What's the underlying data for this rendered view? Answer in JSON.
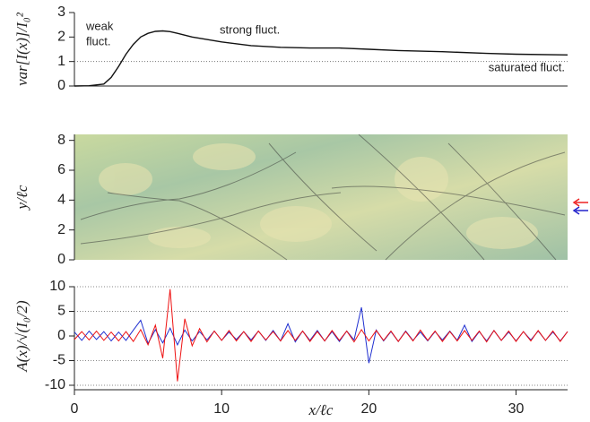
{
  "chart_data": [
    {
      "type": "line",
      "ylabel": "var[I(x)]/I₀²",
      "annotations": [
        "weak",
        "fluct.",
        "strong fluct.",
        "saturated fluct."
      ],
      "annotation_colors": [
        "#222",
        "#222",
        "#222",
        "#9b3b9b"
      ],
      "x": [
        0,
        1,
        2,
        2.5,
        3,
        3.5,
        4,
        4.5,
        5,
        5.5,
        6,
        6.5,
        7,
        8,
        9,
        10,
        12,
        14,
        16,
        18,
        20,
        22,
        25,
        28,
        30,
        33.5
      ],
      "series": [
        {
          "name": "var",
          "color": "#111",
          "values": [
            0,
            0.01,
            0.08,
            0.35,
            0.8,
            1.3,
            1.7,
            2.0,
            2.15,
            2.23,
            2.25,
            2.22,
            2.15,
            2.0,
            1.9,
            1.8,
            1.65,
            1.58,
            1.55,
            1.55,
            1.5,
            1.45,
            1.4,
            1.33,
            1.3,
            1.27
          ]
        }
      ],
      "xlim": [
        0,
        33.5
      ],
      "ylim": [
        0,
        3
      ],
      "yticks": [
        0,
        1,
        2,
        3
      ],
      "reference_line": 1
    },
    {
      "type": "image",
      "ylabel": "y/ℓc",
      "xlim": [
        0,
        33.5
      ],
      "ylim": [
        0,
        8.4
      ],
      "yticks": [
        0,
        2,
        4,
        6,
        8
      ]
    },
    {
      "type": "line",
      "ylabel": "A(x)/√(I₀/2)",
      "xlabel": "x/ℓc",
      "x": [
        0,
        0.5,
        1,
        1.5,
        2,
        2.5,
        3,
        3.5,
        4,
        4.5,
        5,
        5.5,
        6,
        6.5,
        7,
        7.5,
        8,
        8.5,
        9,
        9.5,
        10,
        10.5,
        11,
        11.5,
        12,
        12.5,
        13,
        13.5,
        14,
        14.5,
        15,
        15.5,
        16,
        16.5,
        17,
        17.5,
        18,
        18.5,
        19,
        19.5,
        20,
        20.5,
        21,
        21.5,
        22,
        22.5,
        23,
        23.5,
        24,
        24.5,
        25,
        25.5,
        26,
        26.5,
        27,
        27.5,
        28,
        28.5,
        29,
        29.5,
        30,
        30.5,
        31,
        31.5,
        32,
        32.5,
        33,
        33.5
      ],
      "series": [
        {
          "name": "blue",
          "color": "#1f2fd0",
          "values": [
            0.8,
            -0.9,
            1.0,
            -0.7,
            0.9,
            -1.0,
            0.8,
            -0.9,
            1.2,
            3.2,
            -1.5,
            1.3,
            -1.4,
            1.6,
            -1.8,
            1.2,
            -1.0,
            0.9,
            -0.8,
            1.0,
            -0.9,
            0.8,
            -0.7,
            0.9,
            -0.8,
            1.0,
            -0.9,
            1.1,
            -1.0,
            2.5,
            -1.2,
            1.0,
            -0.9,
            1.1,
            -1.0,
            0.9,
            -1.1,
            1.0,
            -0.8,
            5.8,
            -5.5,
            1.2,
            -1.0,
            0.9,
            -1.1,
            1.0,
            -0.9,
            0.8,
            -1.0,
            0.9,
            -0.8,
            1.0,
            -0.9,
            2.2,
            -1.1,
            0.9,
            -1.0,
            1.1,
            -0.9,
            0.8,
            -1.0,
            0.9,
            -0.8,
            1.0,
            -0.9,
            0.8,
            -1.0,
            0.9
          ]
        },
        {
          "name": "red",
          "color": "#ee1111",
          "values": [
            -0.7,
            0.9,
            -0.8,
            1.0,
            -0.9,
            0.8,
            -1.0,
            0.9,
            -1.1,
            1.3,
            -1.8,
            2.2,
            -4.5,
            9.5,
            -9.2,
            3.5,
            -2.0,
            1.5,
            -1.2,
            1.0,
            -0.9,
            1.1,
            -1.0,
            0.9,
            -1.1,
            1.0,
            -0.8,
            0.9,
            -1.0,
            1.1,
            -0.9,
            1.0,
            -1.1,
            0.9,
            -1.0,
            1.1,
            -0.9,
            1.0,
            -1.2,
            1.3,
            -1.0,
            1.1,
            -0.9,
            1.0,
            -1.1,
            0.9,
            -1.0,
            1.2,
            -0.9,
            1.0,
            -1.1,
            0.9,
            -1.0,
            1.1,
            -0.9,
            1.0,
            -1.2,
            1.1,
            -0.9,
            1.0,
            -1.1,
            0.9,
            -1.0,
            1.1,
            -0.9,
            1.0,
            -1.1,
            0.9
          ]
        }
      ],
      "xlim": [
        0,
        33.5
      ],
      "ylim": [
        -10,
        10
      ],
      "yticks": [
        -10,
        -5,
        0,
        5,
        10
      ],
      "xticks": [
        0,
        10,
        20,
        30
      ],
      "grid": true
    }
  ]
}
